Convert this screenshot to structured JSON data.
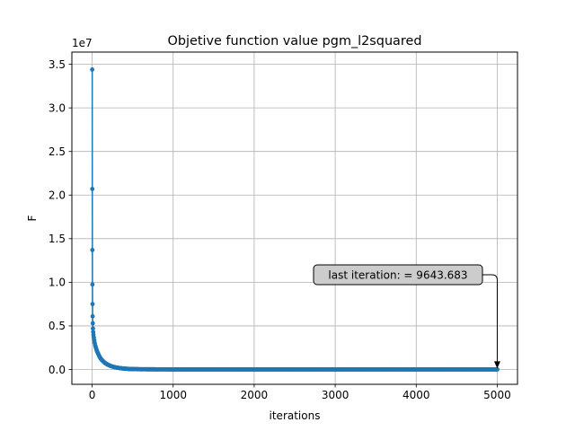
{
  "chart_data": {
    "type": "line",
    "title": "Objetive function value pgm_l2squared",
    "xlabel": "iterations",
    "ylabel": "F",
    "y_offset_text": "1e7",
    "y_multiplier": 10000000,
    "xlim": [
      -250,
      5250
    ],
    "ylim": [
      -1700000,
      36400000
    ],
    "x_ticks": [
      0,
      1000,
      2000,
      3000,
      4000,
      5000
    ],
    "x_tick_labels": [
      "0",
      "1000",
      "2000",
      "3000",
      "4000",
      "5000"
    ],
    "y_ticks": [
      0,
      5000000,
      10000000,
      15000000,
      20000000,
      25000000,
      30000000,
      35000000
    ],
    "y_tick_labels": [
      "0.0",
      "0.5",
      "1.0",
      "1.5",
      "2.0",
      "2.5",
      "3.0",
      "3.5"
    ],
    "grid": true,
    "series": [
      {
        "color": "#1f77b4",
        "marker": "circle",
        "x_start": 1,
        "x_end": 5000,
        "points": [
          [
            1,
            34400000
          ],
          [
            2,
            20700000
          ],
          [
            3,
            13700000
          ],
          [
            4,
            9750000
          ],
          [
            5,
            7500000
          ],
          [
            6,
            6100000
          ],
          [
            8,
            5300000
          ],
          [
            10,
            4700000
          ],
          [
            13,
            4300000
          ],
          [
            16,
            4000000
          ],
          [
            20,
            3700000
          ],
          [
            25,
            3400000
          ],
          [
            30,
            3100000
          ],
          [
            40,
            2700000
          ],
          [
            50,
            2400000
          ],
          [
            60,
            2100000
          ],
          [
            75,
            1800000
          ],
          [
            90,
            1500000
          ],
          [
            110,
            1200000
          ],
          [
            130,
            1000000
          ],
          [
            150,
            820000
          ],
          [
            175,
            650000
          ],
          [
            200,
            520000
          ],
          [
            230,
            400000
          ],
          [
            260,
            310000
          ],
          [
            300,
            220000
          ],
          [
            350,
            150000
          ],
          [
            400,
            100000
          ],
          [
            450,
            65000
          ],
          [
            500,
            45000
          ],
          [
            600,
            25000
          ],
          [
            800,
            15000
          ],
          [
            1000,
            12000
          ],
          [
            2000,
            10500
          ],
          [
            3000,
            10000
          ],
          [
            4000,
            9800
          ],
          [
            5000,
            9643.683
          ]
        ]
      }
    ],
    "annotation": {
      "text": "last iteration: = 9643.683",
      "x": 5000,
      "y": 9643.683
    }
  }
}
